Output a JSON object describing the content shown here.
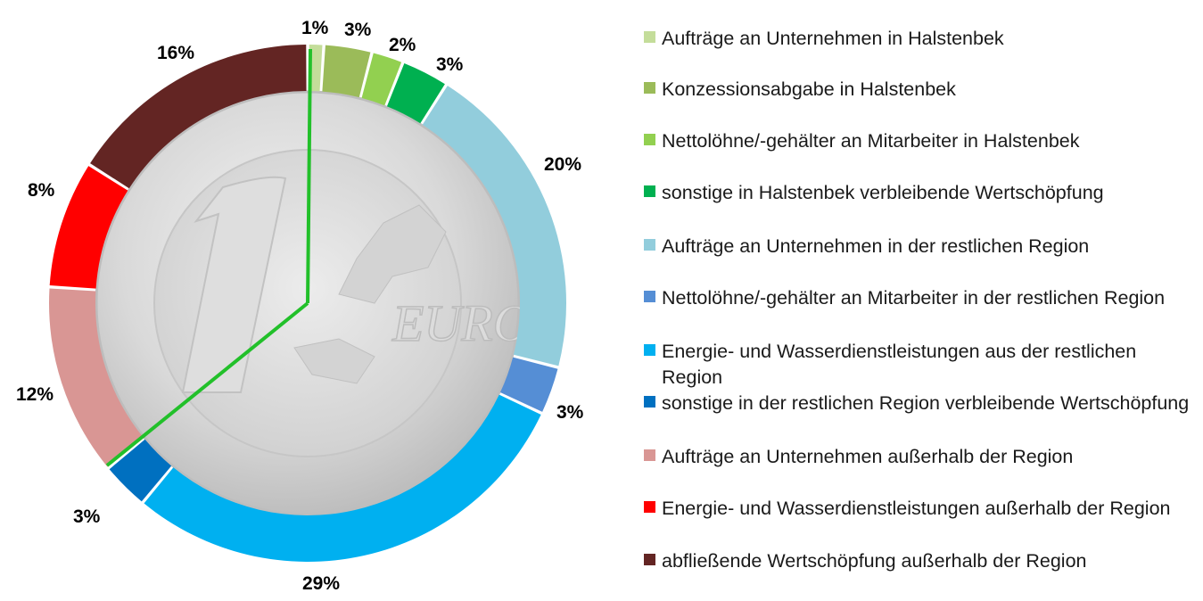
{
  "chart_data": {
    "type": "pie",
    "style": "donut",
    "title": "",
    "categories": [
      "Aufträge an Unternehmen in Halstenbek",
      "Konzessionsabgabe in Halstenbek",
      "Nettolöhne/-gehälter an Mitarbeiter in Halstenbek",
      "sonstige in Halstenbek verbleibende Wertschöpfung",
      "Aufträge an Unternehmen in der restlichen Region",
      "Nettolöhne/-gehälter an Mitarbeiter in der restlichen Region",
      "Energie- und Wasserdienstleistungen aus der restlichen Region",
      "sonstige in der restlichen Region verbleibende Wertschöpfung",
      "Aufträge an Unternehmen außerhalb der Region",
      "Energie- und Wasserdienstleistungen außerhalb der Region",
      "abfließende Wertschöpfung außerhalb der Region"
    ],
    "values": [
      1,
      3,
      2,
      3,
      20,
      3,
      29,
      3,
      12,
      8,
      16
    ],
    "labels": [
      "1%",
      "3%",
      "2%",
      "3%",
      "20%",
      "3%",
      "29%",
      "3%",
      "12%",
      "8%",
      "16%"
    ],
    "colors": [
      "#c4dd9a",
      "#9bbb59",
      "#92d050",
      "#00b050",
      "#92cddc",
      "#558ed5",
      "#00b0f0",
      "#0070c0",
      "#d99694",
      "#ff0000",
      "#632523"
    ],
    "legend_position": "right",
    "center_image": "one-euro-coin",
    "divider_color": "#22c02a"
  }
}
